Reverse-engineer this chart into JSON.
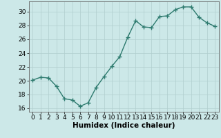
{
  "xlabel": "Humidex (Indice chaleur)",
  "x": [
    0,
    1,
    2,
    3,
    4,
    5,
    6,
    7,
    8,
    9,
    10,
    11,
    12,
    13,
    14,
    15,
    16,
    17,
    18,
    19,
    20,
    21,
    22,
    23
  ],
  "y": [
    20.1,
    20.5,
    20.4,
    19.2,
    17.4,
    17.2,
    16.3,
    16.8,
    19.0,
    20.6,
    22.1,
    23.5,
    26.3,
    28.7,
    27.8,
    27.7,
    29.3,
    29.4,
    30.3,
    30.7,
    30.7,
    29.2,
    28.4,
    27.9
  ],
  "line_color": "#2d7a6e",
  "marker": "+",
  "marker_size": 4,
  "linewidth": 1.0,
  "bg_color": "#cce8e8",
  "grid_color": "#b0cece",
  "ylim": [
    15.5,
    31.5
  ],
  "yticks": [
    16,
    18,
    20,
    22,
    24,
    26,
    28,
    30
  ],
  "xticks": [
    0,
    1,
    2,
    3,
    4,
    5,
    6,
    7,
    8,
    9,
    10,
    11,
    12,
    13,
    14,
    15,
    16,
    17,
    18,
    19,
    20,
    21,
    22,
    23
  ],
  "xlabel_fontsize": 7.5,
  "tick_fontsize": 6.5
}
